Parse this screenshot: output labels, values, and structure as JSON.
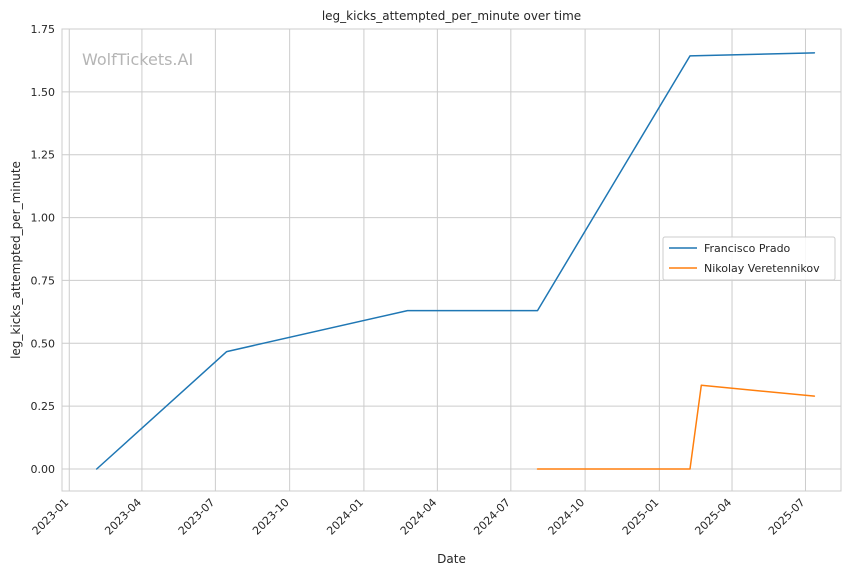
{
  "chart_data": {
    "type": "line",
    "title": "leg_kicks_attempted_per_minute over time",
    "xlabel": "Date",
    "ylabel": "leg_kicks_attempted_per_minute",
    "watermark": "WolfTickets.AI",
    "xlim": [
      "2022-12-23",
      "2025-08-14"
    ],
    "ylim": [
      -0.0875,
      1.75
    ],
    "x_ticks": [
      "2023-01",
      "2023-04",
      "2023-07",
      "2023-10",
      "2024-01",
      "2024-04",
      "2024-07",
      "2024-10",
      "2025-01",
      "2025-04",
      "2025-07"
    ],
    "y_ticks": [
      "0.00",
      "0.25",
      "0.50",
      "0.75",
      "1.00",
      "1.25",
      "1.50",
      "1.75"
    ],
    "grid": true,
    "legend_position": "center-right",
    "series": [
      {
        "name": "Francisco Prado",
        "color": "#1f77b4",
        "points": [
          {
            "x": "2023-02-04",
            "y": 0.0
          },
          {
            "x": "2023-07-15",
            "y": 0.467
          },
          {
            "x": "2024-02-24",
            "y": 0.63
          },
          {
            "x": "2024-08-03",
            "y": 0.63
          },
          {
            "x": "2025-02-08",
            "y": 1.643
          },
          {
            "x": "2025-07-12",
            "y": 1.655
          }
        ]
      },
      {
        "name": "Nikolay Veretennikov",
        "color": "#ff7f0e",
        "points": [
          {
            "x": "2024-08-03",
            "y": 0.0
          },
          {
            "x": "2025-02-08",
            "y": 0.0
          },
          {
            "x": "2025-02-22",
            "y": 0.333
          },
          {
            "x": "2025-07-12",
            "y": 0.29
          }
        ]
      }
    ]
  }
}
